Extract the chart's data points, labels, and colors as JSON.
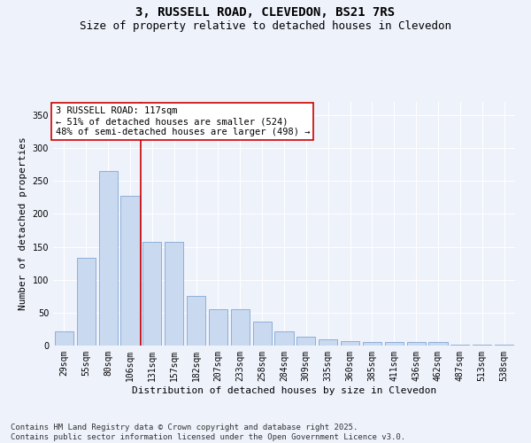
{
  "title": "3, RUSSELL ROAD, CLEVEDON, BS21 7RS",
  "subtitle": "Size of property relative to detached houses in Clevedon",
  "xlabel": "Distribution of detached houses by size in Clevedon",
  "ylabel": "Number of detached properties",
  "categories": [
    "29sqm",
    "55sqm",
    "80sqm",
    "106sqm",
    "131sqm",
    "157sqm",
    "182sqm",
    "207sqm",
    "233sqm",
    "258sqm",
    "284sqm",
    "309sqm",
    "335sqm",
    "360sqm",
    "385sqm",
    "411sqm",
    "436sqm",
    "462sqm",
    "487sqm",
    "513sqm",
    "538sqm"
  ],
  "values": [
    22,
    133,
    265,
    228,
    158,
    158,
    76,
    55,
    55,
    37,
    22,
    13,
    9,
    7,
    6,
    6,
    5,
    5,
    1,
    1,
    1
  ],
  "bar_color": "#c9d9f0",
  "bar_edge_color": "#7099cc",
  "vline_x": 3.5,
  "vline_color": "#cc0000",
  "annotation_text": "3 RUSSELL ROAD: 117sqm\n← 51% of detached houses are smaller (524)\n48% of semi-detached houses are larger (498) →",
  "annotation_box_color": "#ffffff",
  "annotation_box_edge": "#cc0000",
  "annotation_fontsize": 7.5,
  "ylim": [
    0,
    370
  ],
  "yticks": [
    0,
    50,
    100,
    150,
    200,
    250,
    300,
    350
  ],
  "title_fontsize": 10,
  "subtitle_fontsize": 9,
  "xlabel_fontsize": 8,
  "ylabel_fontsize": 8,
  "tick_fontsize": 7,
  "footer_text": "Contains HM Land Registry data © Crown copyright and database right 2025.\nContains public sector information licensed under the Open Government Licence v3.0.",
  "footer_fontsize": 6.5,
  "bg_color": "#eef2fb",
  "grid_color": "#ffffff"
}
